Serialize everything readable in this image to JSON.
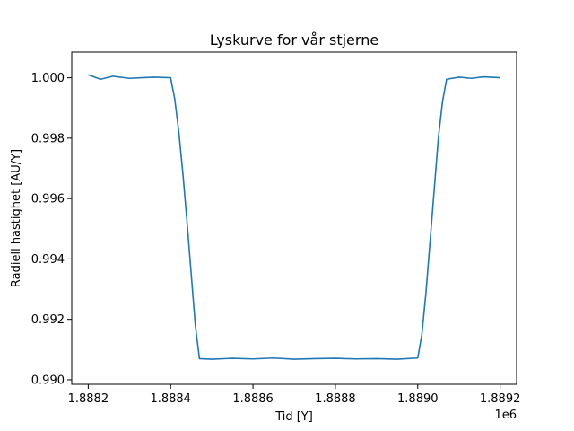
{
  "chart_data": {
    "type": "line",
    "title": "Lyskurve for vår stjerne",
    "xlabel": "Tid [Y]",
    "ylabel": "Radiell hastighet [AU/Y]",
    "x_offset_label": "1e6",
    "xlim": [
      1.88816,
      1.88924
    ],
    "ylim": [
      0.98985,
      1.00085
    ],
    "xticks": [
      1.8882,
      1.8884,
      1.8886,
      1.8888,
      1.889,
      1.8892
    ],
    "xtick_labels": [
      "1.8882",
      "1.8884",
      "1.8886",
      "1.8888",
      "1.8890",
      "1.8892"
    ],
    "yticks": [
      0.99,
      0.992,
      0.994,
      0.996,
      0.998,
      1.0
    ],
    "ytick_labels": [
      "0.990",
      "0.992",
      "0.994",
      "0.996",
      "0.998",
      "1.000"
    ],
    "grid": false,
    "series_color": "#1f77b4",
    "series": [
      {
        "x": [
          1.8882,
          1.88823,
          1.88826,
          1.8883,
          1.88833,
          1.88836,
          1.8884,
          1.88841,
          1.88842,
          1.88843,
          1.88844,
          1.88845,
          1.88846,
          1.88847,
          1.8885,
          1.88855,
          1.8886,
          1.88865,
          1.8887,
          1.88875,
          1.8888,
          1.88885,
          1.8889,
          1.88895,
          1.889,
          1.88901,
          1.88902,
          1.88903,
          1.88904,
          1.88905,
          1.88906,
          1.88907,
          1.8891,
          1.88913,
          1.88916,
          1.8892
        ],
        "y": [
          1.0001,
          0.99995,
          1.00005,
          0.99998,
          1.0,
          1.00002,
          1.0,
          0.9993,
          0.9982,
          0.9968,
          0.9952,
          0.9935,
          0.9918,
          0.9907,
          0.99068,
          0.99071,
          0.99069,
          0.99072,
          0.99068,
          0.9907,
          0.99071,
          0.99069,
          0.9907,
          0.99068,
          0.99072,
          0.9915,
          0.9929,
          0.9946,
          0.9963,
          0.998,
          0.9992,
          0.99995,
          1.00002,
          0.99998,
          1.00003,
          1.0
        ]
      }
    ]
  }
}
